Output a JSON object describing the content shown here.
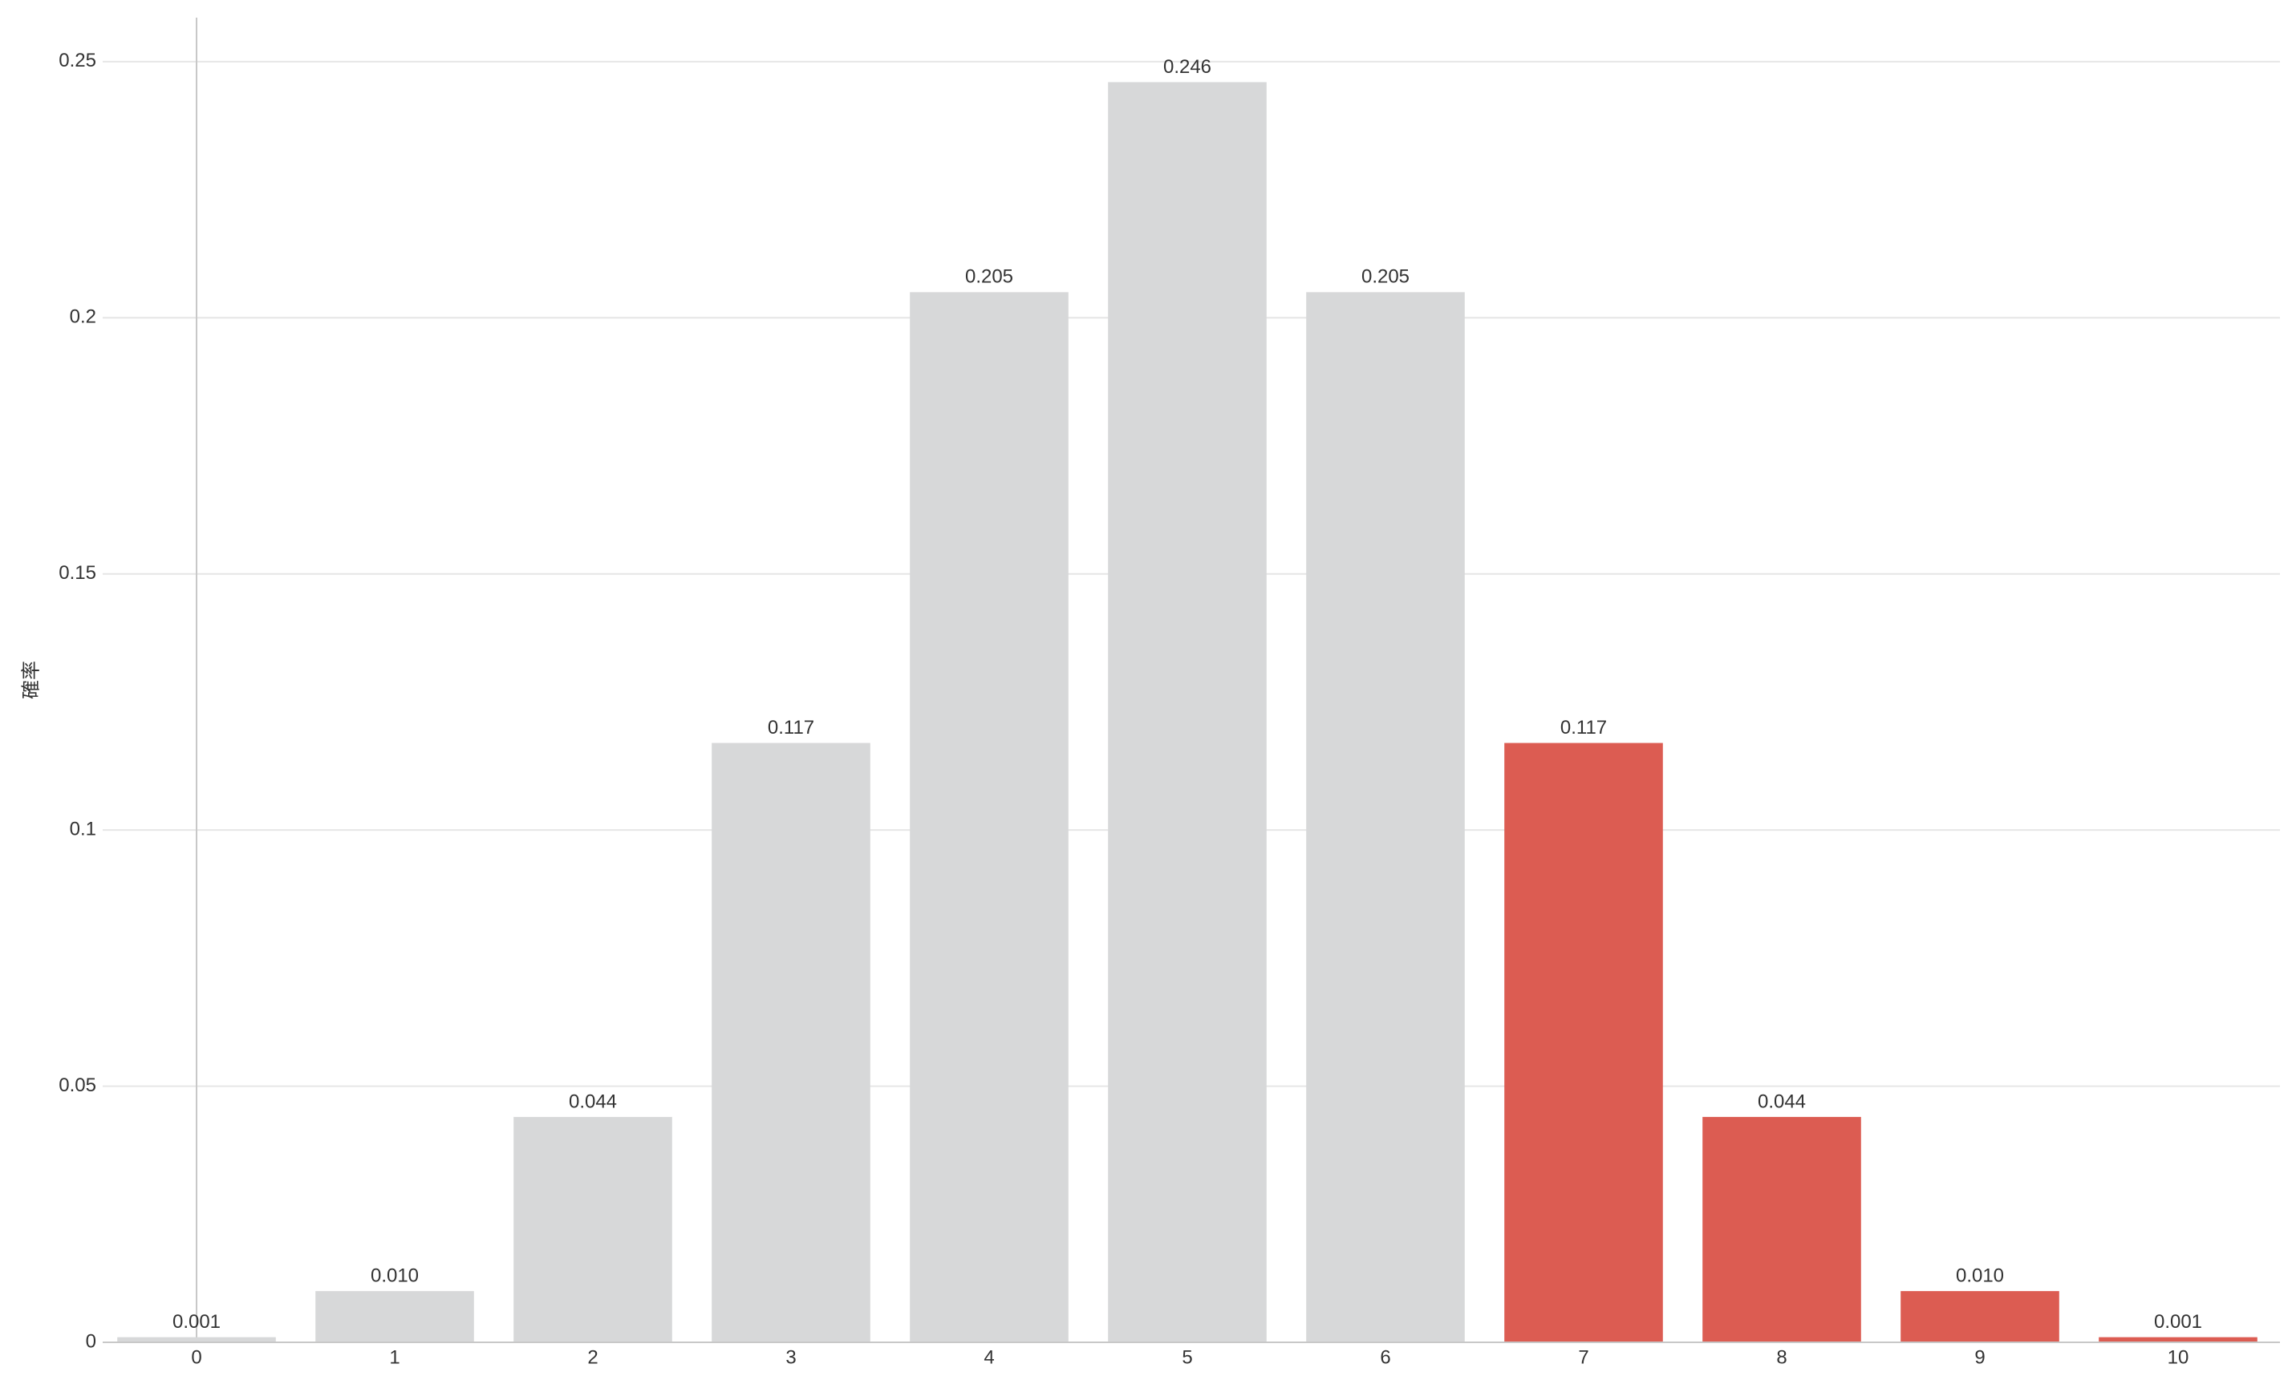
{
  "chart_data": {
    "type": "bar",
    "y_label": "確率",
    "categories": [
      "0",
      "1",
      "2",
      "3",
      "4",
      "5",
      "6",
      "7",
      "8",
      "9",
      "10"
    ],
    "values": [
      0.001,
      0.01,
      0.044,
      0.117,
      0.205,
      0.246,
      0.205,
      0.117,
      0.044,
      0.01,
      0.001
    ],
    "value_labels": [
      "0.001",
      "0.010",
      "0.044",
      "0.117",
      "0.205",
      "0.246",
      "0.205",
      "0.117",
      "0.044",
      "0.010",
      "0.001"
    ],
    "colors": [
      "#d7d8d9",
      "#d7d8d9",
      "#d7d8d9",
      "#d7d8d9",
      "#d7d8d9",
      "#d7d8d9",
      "#d7d8d9",
      "#dc5c52",
      "#dc5c52",
      "#dc5c52",
      "#dc5c52"
    ],
    "ylim": [
      0,
      0.26
    ],
    "yticks": [
      0,
      0.05,
      0.1,
      0.15,
      0.2,
      0.25
    ],
    "grid": true
  }
}
